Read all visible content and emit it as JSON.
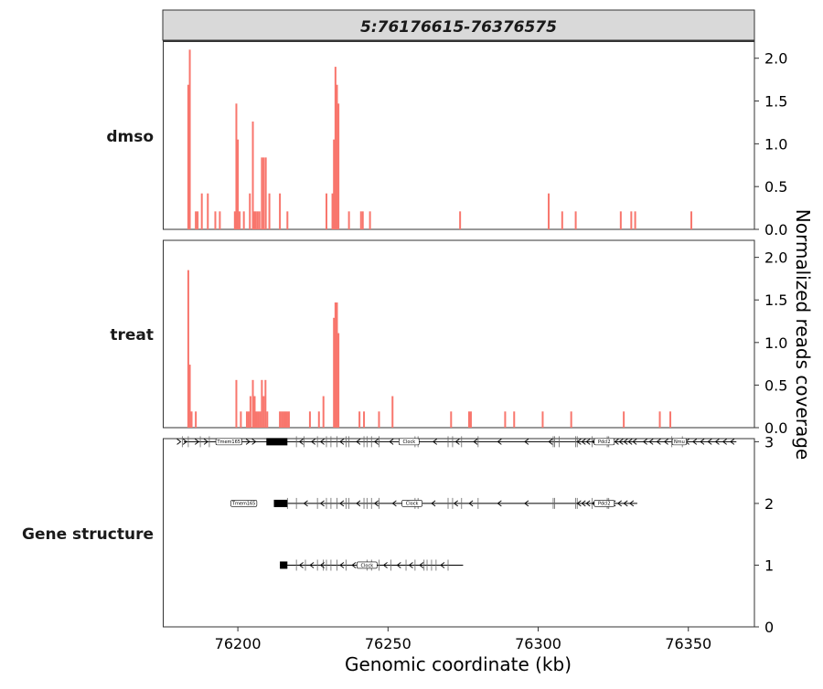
{
  "chart_data": {
    "type": "bar",
    "facet_title": "5:76176615-76376575",
    "xlabel": "Genomic coordinate (kb)",
    "ylabel": "Normalized reads coverage",
    "xlim": [
      76175,
      76372
    ],
    "x_ticks": [
      76200,
      76250,
      76300,
      76350
    ],
    "bar_color": "#f8766d",
    "tracks": [
      {
        "name": "dmso",
        "ylim": [
          0,
          2.2
        ],
        "y_ticks": [
          0.0,
          0.5,
          1.0,
          1.5,
          2.0
        ],
        "bars": [
          {
            "x": 76183.5,
            "y": 1.69
          },
          {
            "x": 76184.0,
            "y": 2.1
          },
          {
            "x": 76186.0,
            "y": 0.21
          },
          {
            "x": 76186.6,
            "y": 0.21
          },
          {
            "x": 76188.0,
            "y": 0.42
          },
          {
            "x": 76190.0,
            "y": 0.42
          },
          {
            "x": 76192.5,
            "y": 0.21
          },
          {
            "x": 76194.0,
            "y": 0.21
          },
          {
            "x": 76199.0,
            "y": 0.21
          },
          {
            "x": 76199.5,
            "y": 1.47
          },
          {
            "x": 76200.0,
            "y": 1.05
          },
          {
            "x": 76200.6,
            "y": 0.21
          },
          {
            "x": 76202.0,
            "y": 0.21
          },
          {
            "x": 76204.0,
            "y": 0.42
          },
          {
            "x": 76205.0,
            "y": 1.26
          },
          {
            "x": 76205.5,
            "y": 0.21
          },
          {
            "x": 76206.0,
            "y": 0.21
          },
          {
            "x": 76206.6,
            "y": 0.21
          },
          {
            "x": 76207.2,
            "y": 0.21
          },
          {
            "x": 76208.0,
            "y": 0.84
          },
          {
            "x": 76208.6,
            "y": 0.84
          },
          {
            "x": 76209.3,
            "y": 0.84
          },
          {
            "x": 76210.5,
            "y": 0.42
          },
          {
            "x": 76214.0,
            "y": 0.42
          },
          {
            "x": 76216.5,
            "y": 0.21
          },
          {
            "x": 76229.5,
            "y": 0.42
          },
          {
            "x": 76231.5,
            "y": 0.42
          },
          {
            "x": 76232.0,
            "y": 1.05
          },
          {
            "x": 76232.5,
            "y": 1.9
          },
          {
            "x": 76233.0,
            "y": 1.69
          },
          {
            "x": 76233.5,
            "y": 1.47
          },
          {
            "x": 76237.0,
            "y": 0.21
          },
          {
            "x": 76241.0,
            "y": 0.21
          },
          {
            "x": 76241.6,
            "y": 0.21
          },
          {
            "x": 76244.0,
            "y": 0.21
          },
          {
            "x": 76274.0,
            "y": 0.21
          },
          {
            "x": 76303.5,
            "y": 0.42
          },
          {
            "x": 76308.0,
            "y": 0.21
          },
          {
            "x": 76312.5,
            "y": 0.21
          },
          {
            "x": 76327.5,
            "y": 0.21
          },
          {
            "x": 76331.0,
            "y": 0.21
          },
          {
            "x": 76332.3,
            "y": 0.21
          },
          {
            "x": 76351.0,
            "y": 0.21
          }
        ]
      },
      {
        "name": "treat",
        "ylim": [
          0,
          2.2
        ],
        "y_ticks": [
          0.0,
          0.5,
          1.0,
          1.5,
          2.0
        ],
        "bars": [
          {
            "x": 76183.5,
            "y": 1.85
          },
          {
            "x": 76184.0,
            "y": 0.74
          },
          {
            "x": 76184.6,
            "y": 0.19
          },
          {
            "x": 76186.0,
            "y": 0.19
          },
          {
            "x": 76199.5,
            "y": 0.56
          },
          {
            "x": 76201.0,
            "y": 0.19
          },
          {
            "x": 76203.0,
            "y": 0.19
          },
          {
            "x": 76203.6,
            "y": 0.19
          },
          {
            "x": 76204.2,
            "y": 0.37
          },
          {
            "x": 76205.0,
            "y": 0.56
          },
          {
            "x": 76205.6,
            "y": 0.37
          },
          {
            "x": 76206.2,
            "y": 0.19
          },
          {
            "x": 76206.8,
            "y": 0.19
          },
          {
            "x": 76207.4,
            "y": 0.19
          },
          {
            "x": 76208.0,
            "y": 0.56
          },
          {
            "x": 76208.6,
            "y": 0.37
          },
          {
            "x": 76209.2,
            "y": 0.56
          },
          {
            "x": 76209.8,
            "y": 0.19
          },
          {
            "x": 76214.0,
            "y": 0.19
          },
          {
            "x": 76214.6,
            "y": 0.19
          },
          {
            "x": 76215.2,
            "y": 0.19
          },
          {
            "x": 76215.8,
            "y": 0.19
          },
          {
            "x": 76216.4,
            "y": 0.19
          },
          {
            "x": 76217.0,
            "y": 0.19
          },
          {
            "x": 76224.0,
            "y": 0.19
          },
          {
            "x": 76227.0,
            "y": 0.19
          },
          {
            "x": 76228.5,
            "y": 0.37
          },
          {
            "x": 76232.0,
            "y": 1.29
          },
          {
            "x": 76232.5,
            "y": 1.47
          },
          {
            "x": 76233.0,
            "y": 1.47
          },
          {
            "x": 76233.5,
            "y": 1.11
          },
          {
            "x": 76240.5,
            "y": 0.19
          },
          {
            "x": 76242.0,
            "y": 0.19
          },
          {
            "x": 76247.0,
            "y": 0.19
          },
          {
            "x": 76251.5,
            "y": 0.37
          },
          {
            "x": 76271.0,
            "y": 0.19
          },
          {
            "x": 76277.0,
            "y": 0.19
          },
          {
            "x": 76277.6,
            "y": 0.19
          },
          {
            "x": 76289.0,
            "y": 0.19
          },
          {
            "x": 76292.0,
            "y": 0.19
          },
          {
            "x": 76301.5,
            "y": 0.19
          },
          {
            "x": 76311.0,
            "y": 0.19
          },
          {
            "x": 76328.5,
            "y": 0.19
          },
          {
            "x": 76340.5,
            "y": 0.19
          },
          {
            "x": 76344.0,
            "y": 0.19
          }
        ]
      }
    ],
    "gene_track": {
      "name": "Gene structure",
      "ylim": [
        0,
        3.05
      ],
      "y_ticks": [
        0,
        1,
        2,
        3
      ],
      "transcripts": [
        {
          "level": 3,
          "start": 76182,
          "end": 76366,
          "boxes": [
            [
              76209.5,
              76216.5
            ]
          ],
          "exons": [
            76181.5,
            76183.5,
            76187.5,
            76190.5,
            76219.5,
            76222,
            76226.5,
            76229.5,
            76231,
            76233,
            76236,
            76237,
            76242,
            76243,
            76244.5,
            76247,
            76259,
            76260,
            76270,
            76271.5,
            76274.5,
            76280,
            76305,
            76305.5,
            76307,
            76312.5,
            76313,
            76318,
            76323,
            76323.5,
            76344.5,
            76348
          ],
          "arrows": [
            {
              "x": 76180.5,
              "dir": ">"
            },
            {
              "x": 76182.5,
              "dir": ">"
            },
            {
              "x": 76186.5,
              "dir": ">"
            },
            {
              "x": 76189.5,
              "dir": ">"
            },
            {
              "x": 76200.5,
              "dir": ">"
            },
            {
              "x": 76203.5,
              "dir": ">"
            },
            {
              "x": 76205.5,
              "dir": ">"
            },
            {
              "x": 76221,
              "dir": "<"
            },
            {
              "x": 76225,
              "dir": "<"
            },
            {
              "x": 76228,
              "dir": "<"
            },
            {
              "x": 76234.5,
              "dir": "<"
            },
            {
              "x": 76240,
              "dir": "<"
            },
            {
              "x": 76246,
              "dir": "<"
            },
            {
              "x": 76251,
              "dir": "<"
            },
            {
              "x": 76258.5,
              "dir": "<"
            },
            {
              "x": 76265.5,
              "dir": "<"
            },
            {
              "x": 76273,
              "dir": "<"
            },
            {
              "x": 76279,
              "dir": "<"
            },
            {
              "x": 76287,
              "dir": "<"
            },
            {
              "x": 76296,
              "dir": "<"
            },
            {
              "x": 76304,
              "dir": "<"
            },
            {
              "x": 76313.5,
              "dir": "<"
            },
            {
              "x": 76315,
              "dir": "<"
            },
            {
              "x": 76316.5,
              "dir": "<"
            },
            {
              "x": 76318.5,
              "dir": "<"
            },
            {
              "x": 76319.5,
              "dir": "<"
            },
            {
              "x": 76324.5,
              "dir": "<"
            },
            {
              "x": 76326,
              "dir": "<"
            },
            {
              "x": 76327.5,
              "dir": "<"
            },
            {
              "x": 76329,
              "dir": "<"
            },
            {
              "x": 76330.5,
              "dir": "<"
            },
            {
              "x": 76332,
              "dir": "<"
            },
            {
              "x": 76335.5,
              "dir": "<"
            },
            {
              "x": 76337.5,
              "dir": "<"
            },
            {
              "x": 76340,
              "dir": "<"
            },
            {
              "x": 76342.5,
              "dir": "<"
            },
            {
              "x": 76349.5,
              "dir": "<"
            },
            {
              "x": 76352,
              "dir": "<"
            },
            {
              "x": 76354.5,
              "dir": "<"
            },
            {
              "x": 76357,
              "dir": "<"
            },
            {
              "x": 76359.5,
              "dir": "<"
            },
            {
              "x": 76362,
              "dir": "<"
            },
            {
              "x": 76364.5,
              "dir": "<"
            }
          ],
          "labels": [
            {
              "text": "Tmem165",
              "x": 76197
            },
            {
              "text": "Clock",
              "x": 76257
            },
            {
              "text": "Pdcl2",
              "x": 76322
            },
            {
              "text": "Nmu",
              "x": 76347
            }
          ]
        },
        {
          "level": 2,
          "start": 76212,
          "end": 76333,
          "boxes": [
            [
              76212,
              76216.5
            ]
          ],
          "exons": [
            76216.5,
            76219.5,
            76226.5,
            76229.5,
            76231,
            76233,
            76236,
            76237,
            76242,
            76243,
            76244.5,
            76247,
            76259,
            76260,
            76270,
            76271.5,
            76274.5,
            76280,
            76305,
            76305.5,
            76312.5,
            76313,
            76318,
            76323,
            76323.5
          ],
          "arrows": [
            {
              "x": 76222.5,
              "dir": "<"
            },
            {
              "x": 76228,
              "dir": "<"
            },
            {
              "x": 76234.5,
              "dir": "<"
            },
            {
              "x": 76240,
              "dir": "<"
            },
            {
              "x": 76246,
              "dir": "<"
            },
            {
              "x": 76252,
              "dir": "<"
            },
            {
              "x": 76265,
              "dir": "<"
            },
            {
              "x": 76272.5,
              "dir": "<"
            },
            {
              "x": 76277.5,
              "dir": "<"
            },
            {
              "x": 76287,
              "dir": "<"
            },
            {
              "x": 76296,
              "dir": "<"
            },
            {
              "x": 76313.5,
              "dir": "<"
            },
            {
              "x": 76315,
              "dir": "<"
            },
            {
              "x": 76316.5,
              "dir": "<"
            },
            {
              "x": 76318.5,
              "dir": "<"
            },
            {
              "x": 76325,
              "dir": "<"
            },
            {
              "x": 76327,
              "dir": "<"
            },
            {
              "x": 76329,
              "dir": "<"
            },
            {
              "x": 76331,
              "dir": "<"
            }
          ],
          "labels": [
            {
              "text": "Tmem165",
              "x": 76202
            },
            {
              "text": "Clock",
              "x": 76258
            },
            {
              "text": "Pdcl2",
              "x": 76322
            }
          ]
        },
        {
          "level": 1,
          "start": 76214,
          "end": 76275,
          "boxes": [
            [
              76214,
              76216.5
            ]
          ],
          "exons": [
            76219.5,
            76222.5,
            76226.5,
            76228.5,
            76229.5,
            76231,
            76233,
            76236,
            76243,
            76244.5,
            76247,
            76251,
            76256,
            76259,
            76262,
            76263,
            76264.5,
            76266,
            76270
          ],
          "arrows": [
            {
              "x": 76221,
              "dir": "<"
            },
            {
              "x": 76224.5,
              "dir": "<"
            },
            {
              "x": 76228,
              "dir": "<"
            },
            {
              "x": 76234.5,
              "dir": "<"
            },
            {
              "x": 76238.5,
              "dir": "<"
            },
            {
              "x": 76249,
              "dir": "<"
            },
            {
              "x": 76253.5,
              "dir": "<"
            },
            {
              "x": 76257.5,
              "dir": "<"
            },
            {
              "x": 76261,
              "dir": "<"
            },
            {
              "x": 76268,
              "dir": "<"
            }
          ],
          "labels": [
            {
              "text": "Clock",
              "x": 76243
            }
          ]
        }
      ]
    }
  }
}
